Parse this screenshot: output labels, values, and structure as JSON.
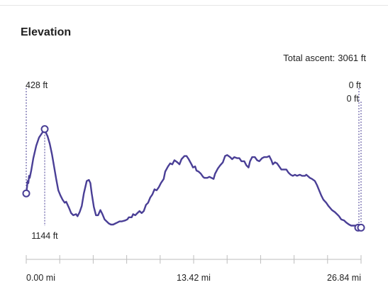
{
  "header": {
    "title": "Elevation",
    "total_ascent_label": "Total ascent:",
    "total_ascent_value": "3061 ft"
  },
  "markers": {
    "start_label": "428 ft",
    "peak_label": "1144 ft",
    "end_label_1": "0 ft",
    "end_label_2": "0 ft"
  },
  "colors": {
    "line": "#4a3f96",
    "marker_line": "#4a3f96",
    "axis": "#bdbdbd",
    "text": "#222222"
  },
  "chart_data": {
    "type": "line",
    "title": "Elevation",
    "xlabel": "",
    "ylabel": "",
    "x_tick_labels": [
      "0.00 mi",
      "13.42 mi",
      "26.84 mi"
    ],
    "xlim": [
      0,
      26.84
    ],
    "series": [
      {
        "values": [
          [
            0.0,
            0.3
          ],
          [
            0.06,
            0.36
          ],
          [
            0.11,
            0.42
          ],
          [
            0.17,
            0.4
          ],
          [
            0.23,
            0.47
          ],
          [
            0.28,
            0.45
          ],
          [
            0.4,
            0.52
          ],
          [
            0.57,
            0.64
          ],
          [
            0.8,
            0.76
          ],
          [
            1.03,
            0.84
          ],
          [
            1.2,
            0.87
          ],
          [
            1.37,
            0.9
          ],
          [
            1.48,
            0.92
          ],
          [
            1.6,
            0.88
          ],
          [
            1.71,
            0.85
          ],
          [
            1.88,
            0.78
          ],
          [
            2.06,
            0.68
          ],
          [
            2.23,
            0.56
          ],
          [
            2.4,
            0.44
          ],
          [
            2.57,
            0.33
          ],
          [
            2.74,
            0.28
          ],
          [
            2.91,
            0.24
          ],
          [
            3.08,
            0.21
          ],
          [
            3.2,
            0.22
          ],
          [
            3.43,
            0.16
          ],
          [
            3.6,
            0.11
          ],
          [
            3.77,
            0.09
          ],
          [
            4.0,
            0.1
          ],
          [
            4.11,
            0.08
          ],
          [
            4.28,
            0.12
          ],
          [
            4.45,
            0.18
          ],
          [
            4.62,
            0.3
          ],
          [
            4.85,
            0.42
          ],
          [
            5.02,
            0.43
          ],
          [
            5.14,
            0.4
          ],
          [
            5.25,
            0.3
          ],
          [
            5.42,
            0.17
          ],
          [
            5.59,
            0.09
          ],
          [
            5.76,
            0.09
          ],
          [
            5.94,
            0.14
          ],
          [
            6.11,
            0.1
          ],
          [
            6.28,
            0.05
          ],
          [
            6.45,
            0.03
          ],
          [
            6.62,
            0.01
          ],
          [
            6.79,
            0.0
          ],
          [
            6.97,
            0.0
          ],
          [
            7.14,
            0.01
          ],
          [
            7.31,
            0.02
          ],
          [
            7.48,
            0.03
          ],
          [
            7.65,
            0.03
          ],
          [
            7.94,
            0.04
          ],
          [
            8.11,
            0.05
          ],
          [
            8.22,
            0.07
          ],
          [
            8.45,
            0.07
          ],
          [
            8.57,
            0.1
          ],
          [
            8.74,
            0.09
          ],
          [
            8.91,
            0.11
          ],
          [
            9.08,
            0.13
          ],
          [
            9.25,
            0.11
          ],
          [
            9.42,
            0.13
          ],
          [
            9.6,
            0.19
          ],
          [
            9.77,
            0.21
          ],
          [
            9.94,
            0.26
          ],
          [
            10.11,
            0.29
          ],
          [
            10.28,
            0.34
          ],
          [
            10.45,
            0.33
          ],
          [
            10.63,
            0.36
          ],
          [
            10.8,
            0.4
          ],
          [
            11.02,
            0.44
          ],
          [
            11.14,
            0.51
          ],
          [
            11.37,
            0.56
          ],
          [
            11.54,
            0.59
          ],
          [
            11.71,
            0.58
          ],
          [
            11.88,
            0.62
          ],
          [
            12.11,
            0.6
          ],
          [
            12.28,
            0.58
          ],
          [
            12.45,
            0.63
          ],
          [
            12.68,
            0.66
          ],
          [
            12.85,
            0.66
          ],
          [
            13.02,
            0.63
          ],
          [
            13.25,
            0.58
          ],
          [
            13.37,
            0.55
          ],
          [
            13.54,
            0.56
          ],
          [
            13.65,
            0.52
          ],
          [
            13.82,
            0.51
          ],
          [
            14.0,
            0.49
          ],
          [
            14.17,
            0.46
          ],
          [
            14.28,
            0.45
          ],
          [
            14.51,
            0.45
          ],
          [
            14.68,
            0.46
          ],
          [
            14.85,
            0.45
          ],
          [
            15.02,
            0.44
          ],
          [
            15.14,
            0.49
          ],
          [
            15.36,
            0.54
          ],
          [
            15.54,
            0.57
          ],
          [
            15.76,
            0.6
          ],
          [
            15.94,
            0.66
          ],
          [
            16.11,
            0.67
          ],
          [
            16.34,
            0.65
          ],
          [
            16.51,
            0.63
          ],
          [
            16.68,
            0.65
          ],
          [
            16.91,
            0.64
          ],
          [
            17.08,
            0.64
          ],
          [
            17.25,
            0.61
          ],
          [
            17.48,
            0.61
          ],
          [
            17.65,
            0.57
          ],
          [
            17.82,
            0.55
          ],
          [
            17.94,
            0.61
          ],
          [
            18.11,
            0.65
          ],
          [
            18.33,
            0.65
          ],
          [
            18.51,
            0.62
          ],
          [
            18.68,
            0.61
          ],
          [
            18.91,
            0.64
          ],
          [
            19.08,
            0.65
          ],
          [
            19.3,
            0.65
          ],
          [
            19.48,
            0.66
          ],
          [
            19.65,
            0.62
          ],
          [
            19.77,
            0.58
          ],
          [
            19.94,
            0.6
          ],
          [
            20.11,
            0.59
          ],
          [
            20.28,
            0.56
          ],
          [
            20.45,
            0.53
          ],
          [
            20.68,
            0.53
          ],
          [
            20.85,
            0.53
          ],
          [
            21.02,
            0.5
          ],
          [
            21.2,
            0.48
          ],
          [
            21.37,
            0.47
          ],
          [
            21.54,
            0.48
          ],
          [
            21.71,
            0.47
          ],
          [
            21.94,
            0.48
          ],
          [
            22.11,
            0.47
          ],
          [
            22.34,
            0.47
          ],
          [
            22.45,
            0.48
          ],
          [
            22.74,
            0.45
          ],
          [
            22.91,
            0.44
          ],
          [
            23.14,
            0.42
          ],
          [
            23.31,
            0.38
          ],
          [
            23.48,
            0.33
          ],
          [
            23.65,
            0.28
          ],
          [
            23.82,
            0.24
          ],
          [
            24.05,
            0.21
          ],
          [
            24.22,
            0.18
          ],
          [
            24.51,
            0.14
          ],
          [
            24.74,
            0.12
          ],
          [
            24.91,
            0.1
          ],
          [
            25.08,
            0.08
          ],
          [
            25.25,
            0.05
          ],
          [
            25.48,
            0.04
          ],
          [
            25.65,
            0.02
          ],
          [
            25.88,
            0.0
          ],
          [
            26.05,
            -0.01
          ],
          [
            26.28,
            -0.01
          ],
          [
            26.45,
            -0.01
          ],
          [
            26.62,
            -0.03
          ],
          [
            26.84,
            -0.03
          ]
        ]
      }
    ]
  }
}
